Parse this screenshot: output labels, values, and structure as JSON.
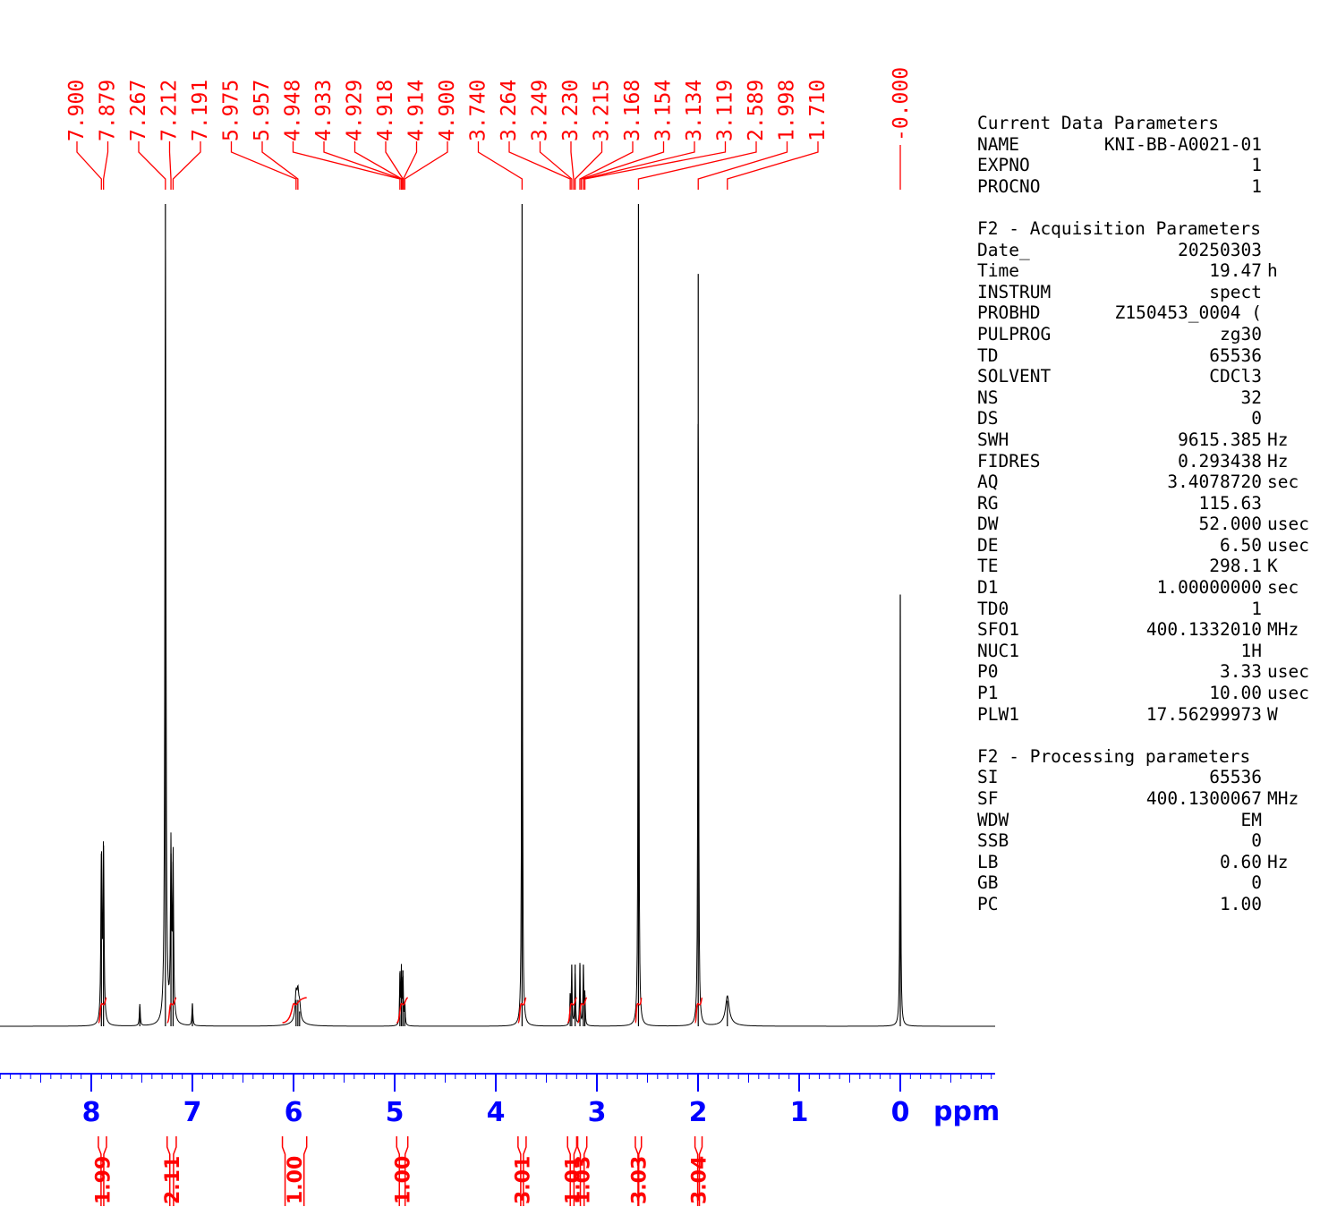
{
  "chart_data": {
    "type": "line",
    "title": "",
    "xlabel": "ppm",
    "ylabel": "",
    "xlim": [
      9.0,
      -0.95
    ],
    "x_ticks": [
      "8",
      "7",
      "6",
      "5",
      "4",
      "3",
      "2",
      "1",
      "0"
    ],
    "grid": false,
    "colors": {
      "axis": "#0000ff",
      "annotation": "#ff0000",
      "trace": "#000000"
    },
    "peak_labels": [
      "7.900",
      "7.879",
      "7.267",
      "7.212",
      "7.191",
      "5.975",
      "5.957",
      "4.948",
      "4.933",
      "4.929",
      "4.918",
      "4.914",
      "4.900",
      "3.740",
      "3.264",
      "3.249",
      "3.230",
      "3.215",
      "3.168",
      "3.154",
      "3.134",
      "3.119",
      "2.589",
      "1.998",
      "1.710"
    ],
    "reference_label": "-0.000",
    "peaks": [
      {
        "ppm": 7.9,
        "height": 0.21,
        "width": 0.006
      },
      {
        "ppm": 7.879,
        "height": 0.22,
        "width": 0.006
      },
      {
        "ppm": 7.52,
        "height": 0.027,
        "width": 0.005
      },
      {
        "ppm": 7.267,
        "height": 1.0,
        "width": 0.006
      },
      {
        "ppm": 7.212,
        "height": 0.21,
        "width": 0.006
      },
      {
        "ppm": 7.191,
        "height": 0.2,
        "width": 0.006
      },
      {
        "ppm": 7.0,
        "height": 0.027,
        "width": 0.005
      },
      {
        "ppm": 5.975,
        "height": 0.032,
        "width": 0.01
      },
      {
        "ppm": 5.957,
        "height": 0.032,
        "width": 0.01
      },
      {
        "ppm": 5.94,
        "height": 0.018,
        "width": 0.01
      },
      {
        "ppm": 4.948,
        "height": 0.065,
        "width": 0.004
      },
      {
        "ppm": 4.933,
        "height": 0.068,
        "width": 0.004
      },
      {
        "ppm": 4.918,
        "height": 0.068,
        "width": 0.004
      },
      {
        "ppm": 4.9,
        "height": 0.03,
        "width": 0.004
      },
      {
        "ppm": 3.74,
        "height": 1.0,
        "width": 0.004
      },
      {
        "ppm": 3.264,
        "height": 0.04,
        "width": 0.004
      },
      {
        "ppm": 3.249,
        "height": 0.075,
        "width": 0.004
      },
      {
        "ppm": 3.215,
        "height": 0.075,
        "width": 0.004
      },
      {
        "ppm": 3.168,
        "height": 0.075,
        "width": 0.004
      },
      {
        "ppm": 3.134,
        "height": 0.075,
        "width": 0.004
      },
      {
        "ppm": 3.119,
        "height": 0.038,
        "width": 0.004
      },
      {
        "ppm": 2.589,
        "height": 1.0,
        "width": 0.004
      },
      {
        "ppm": 1.998,
        "height": 0.915,
        "width": 0.004
      },
      {
        "ppm": 1.71,
        "height": 0.031,
        "width": 0.02
      },
      {
        "ppm": 0.0,
        "height": 0.525,
        "width": 0.004
      }
    ],
    "integrals": [
      {
        "from": 7.93,
        "to": 7.85,
        "value": "1.99"
      },
      {
        "from": 7.25,
        "to": 7.16,
        "value": "2.11"
      },
      {
        "from": 6.11,
        "to": 5.87,
        "value": "1.00"
      },
      {
        "from": 4.98,
        "to": 4.87,
        "value": "1.00"
      },
      {
        "from": 3.78,
        "to": 3.7,
        "value": "3.01"
      },
      {
        "from": 3.29,
        "to": 3.2,
        "value": "1.01"
      },
      {
        "from": 3.19,
        "to": 3.1,
        "value": "1.03"
      },
      {
        "from": 2.62,
        "to": 2.56,
        "value": "3.03"
      },
      {
        "from": 2.03,
        "to": 1.96,
        "value": "3.04"
      }
    ]
  },
  "parameters": {
    "current": {
      "heading": "Current Data Parameters",
      "rows": [
        {
          "name": "NAME",
          "value": "KNI-BB-A0021-01",
          "unit": ""
        },
        {
          "name": "EXPNO",
          "value": "1",
          "unit": ""
        },
        {
          "name": "PROCNO",
          "value": "1",
          "unit": ""
        }
      ]
    },
    "acquisition": {
      "heading": "F2 - Acquisition Parameters",
      "rows": [
        {
          "name": "Date_",
          "value": "20250303",
          "unit": ""
        },
        {
          "name": "Time",
          "value": "19.47",
          "unit": "h"
        },
        {
          "name": "INSTRUM",
          "value": "spect",
          "unit": ""
        },
        {
          "name": "PROBHD",
          "value": "Z150453_0004 (",
          "unit": ""
        },
        {
          "name": "PULPROG",
          "value": "zg30",
          "unit": ""
        },
        {
          "name": "TD",
          "value": "65536",
          "unit": ""
        },
        {
          "name": "SOLVENT",
          "value": "CDCl3",
          "unit": ""
        },
        {
          "name": "NS",
          "value": "32",
          "unit": ""
        },
        {
          "name": "DS",
          "value": "0",
          "unit": ""
        },
        {
          "name": "SWH",
          "value": "9615.385",
          "unit": "Hz"
        },
        {
          "name": "FIDRES",
          "value": "0.293438",
          "unit": "Hz"
        },
        {
          "name": "AQ",
          "value": "3.4078720",
          "unit": "sec"
        },
        {
          "name": "RG",
          "value": "115.63",
          "unit": ""
        },
        {
          "name": "DW",
          "value": "52.000",
          "unit": "usec"
        },
        {
          "name": "DE",
          "value": "6.50",
          "unit": "usec"
        },
        {
          "name": "TE",
          "value": "298.1",
          "unit": "K"
        },
        {
          "name": "D1",
          "value": "1.00000000",
          "unit": "sec"
        },
        {
          "name": "TD0",
          "value": "1",
          "unit": ""
        },
        {
          "name": "SFO1",
          "value": "400.1332010",
          "unit": "MHz"
        },
        {
          "name": "NUC1",
          "value": "1H",
          "unit": ""
        },
        {
          "name": "P0",
          "value": "3.33",
          "unit": "usec"
        },
        {
          "name": "P1",
          "value": "10.00",
          "unit": "usec"
        },
        {
          "name": "PLW1",
          "value": "17.56299973",
          "unit": "W"
        }
      ]
    },
    "processing": {
      "heading": "F2 - Processing parameters",
      "rows": [
        {
          "name": "SI",
          "value": "65536",
          "unit": ""
        },
        {
          "name": "SF",
          "value": "400.1300067",
          "unit": "MHz"
        },
        {
          "name": "WDW",
          "value": "EM",
          "unit": ""
        },
        {
          "name": "SSB",
          "value": "0",
          "unit": ""
        },
        {
          "name": "LB",
          "value": "0.60",
          "unit": "Hz"
        },
        {
          "name": "GB",
          "value": "0",
          "unit": ""
        },
        {
          "name": "PC",
          "value": "1.00",
          "unit": ""
        }
      ]
    }
  }
}
